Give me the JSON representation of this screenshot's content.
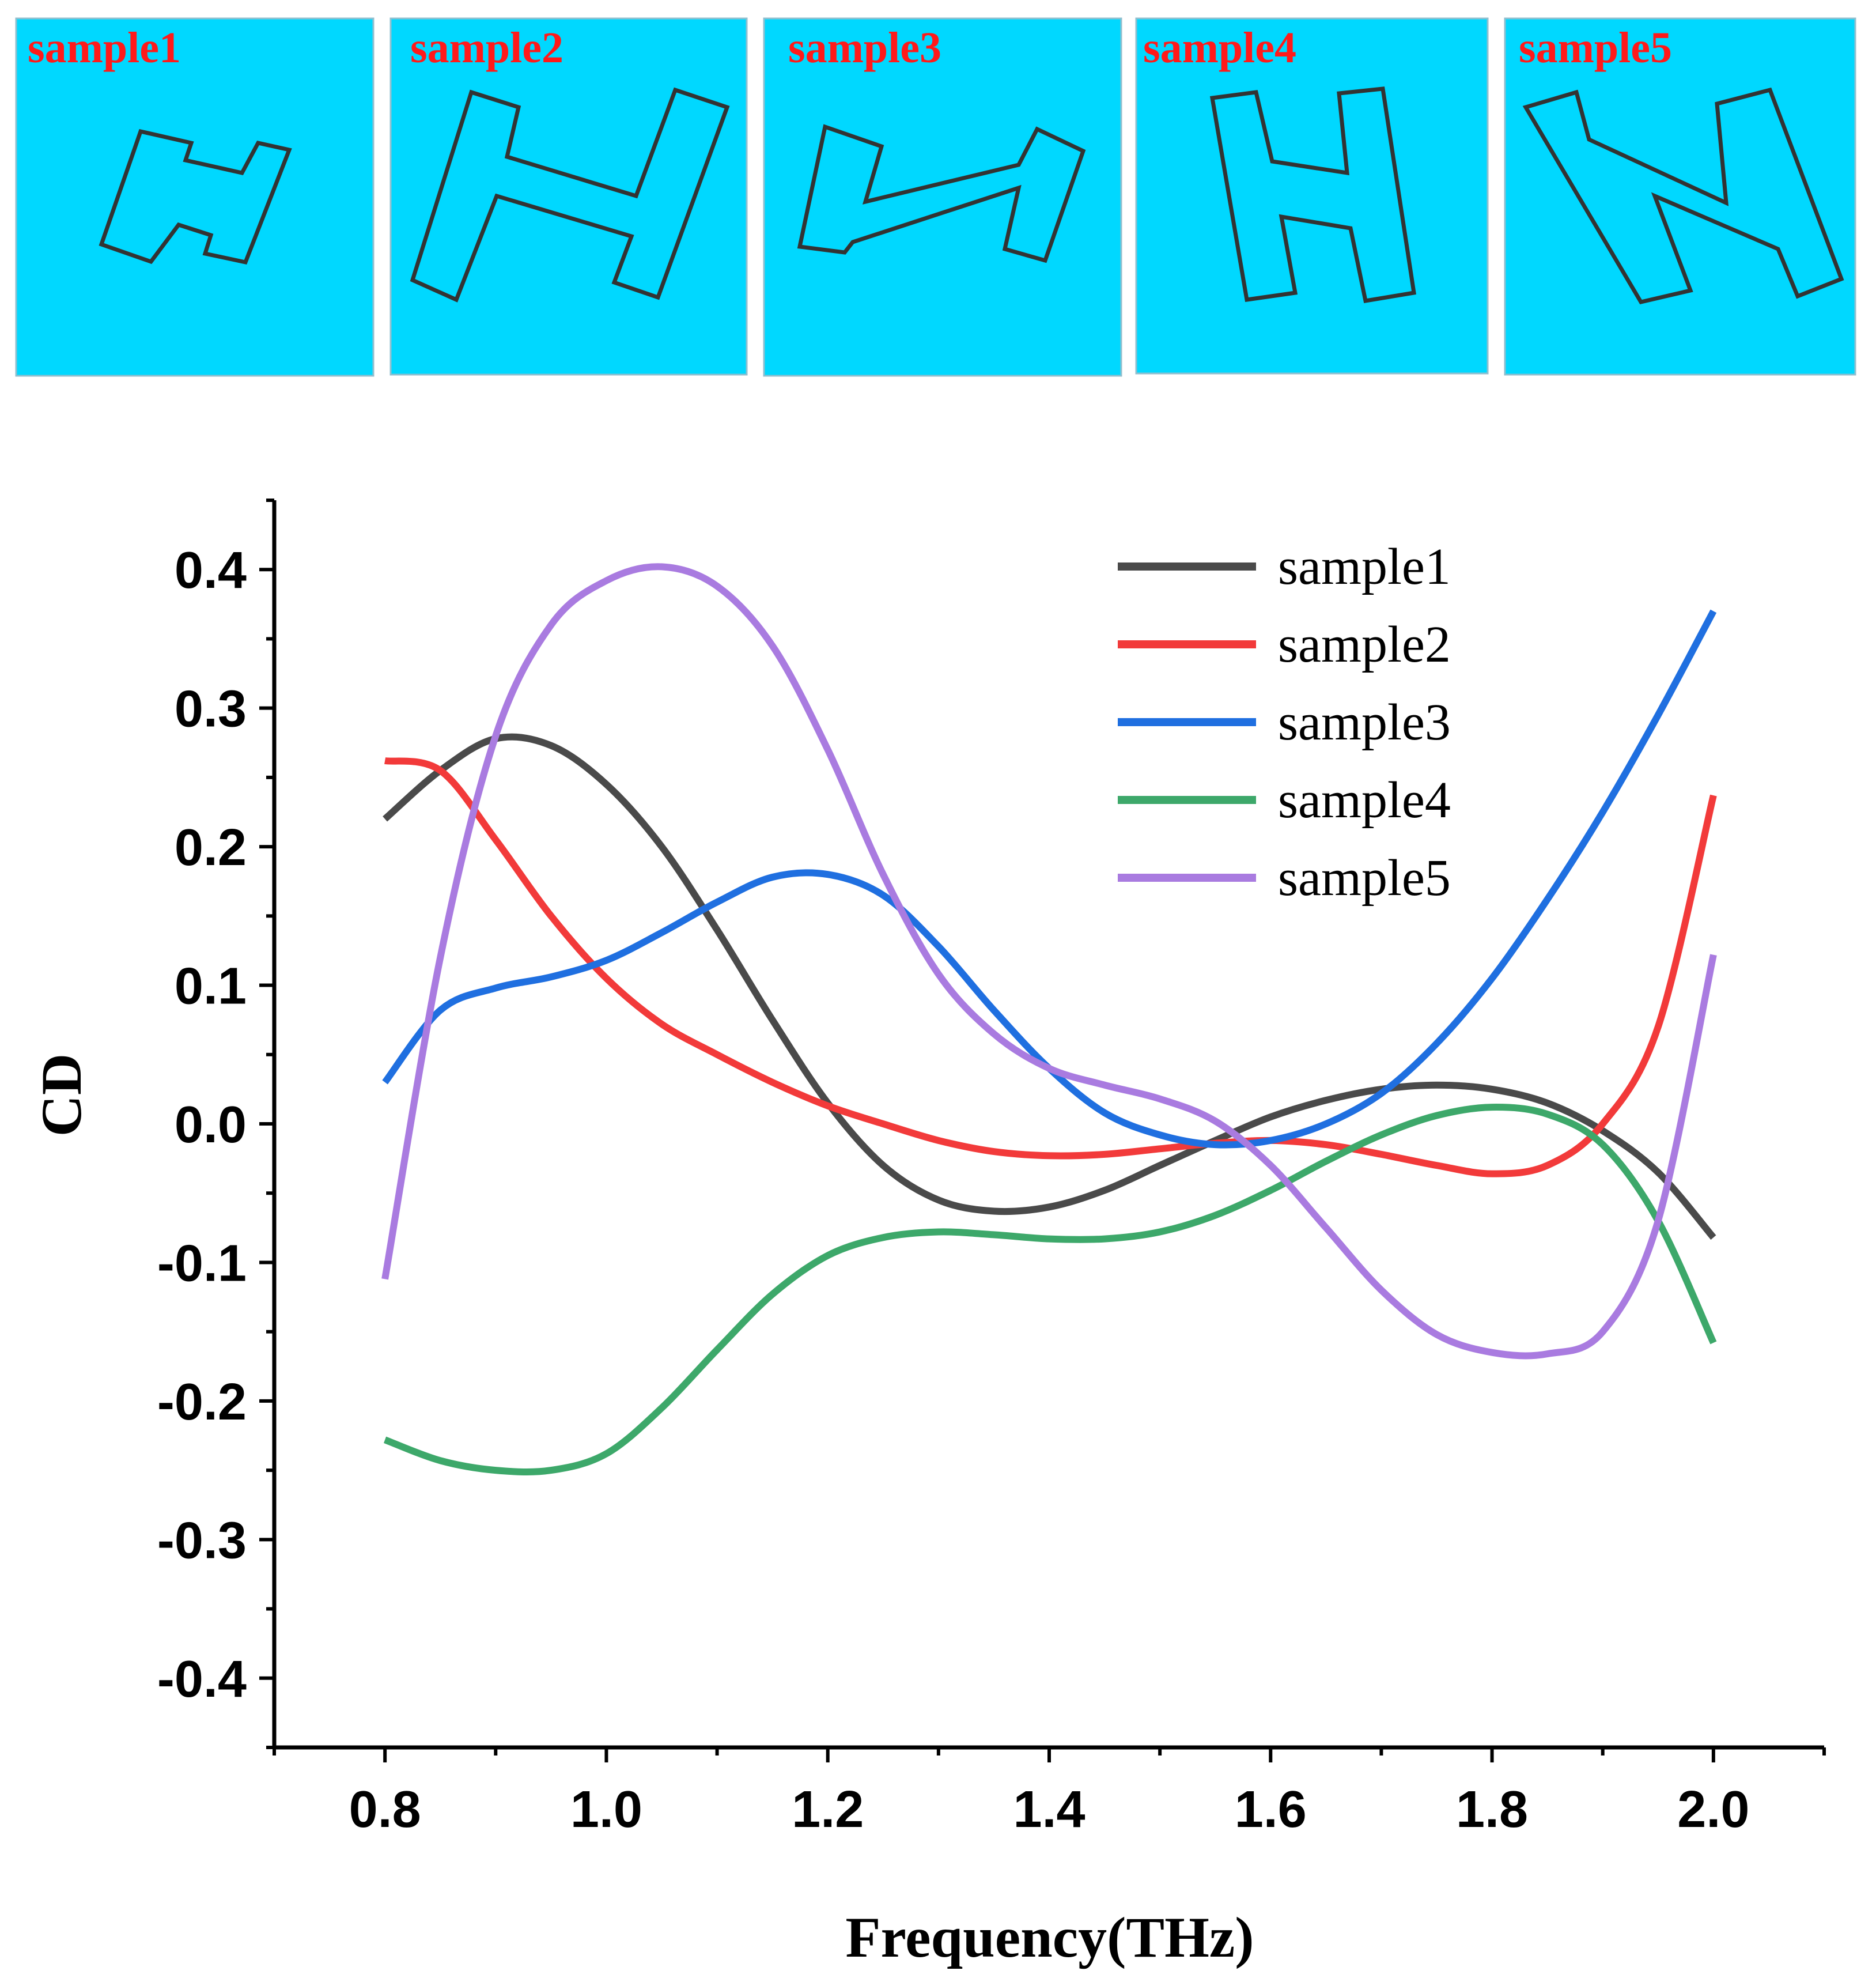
{
  "panels": [
    {
      "label": "sample1",
      "shape": "H-shape, small, tilted"
    },
    {
      "label": "sample2",
      "shape": "H-shape, large, rotated"
    },
    {
      "label": "sample3",
      "shape": "Z-like shape"
    },
    {
      "label": "sample4",
      "shape": "H-shape, upright slightly tilted"
    },
    {
      "label": "sample5",
      "shape": "N-like shape"
    }
  ],
  "colors": {
    "panel_bg": "#00D8FF",
    "panel_label": "#FF1A1A",
    "outline": "#333333",
    "sample1": "#4A4A4A",
    "sample2": "#F23A3A",
    "sample3": "#1F6FE0",
    "sample4": "#3DA86A",
    "sample5": "#A97BE0"
  },
  "chart_data": {
    "type": "line",
    "title": "",
    "xlabel": "Frequency(THz)",
    "ylabel": "CD",
    "xlim": [
      0.7,
      2.1
    ],
    "ylim": [
      -0.45,
      0.45
    ],
    "xticks": [
      "0.8",
      "1.0",
      "1.2",
      "1.4",
      "1.6",
      "1.8",
      "2.0"
    ],
    "yticks": [
      "0.4",
      "0.3",
      "0.2",
      "0.1",
      "0.0",
      "-0.1",
      "-0.2",
      "-0.3",
      "-0.4"
    ],
    "legend_position": "top-right",
    "series": [
      {
        "name": "sample1",
        "x": [
          0.8,
          0.85,
          0.9,
          0.95,
          1.0,
          1.05,
          1.1,
          1.15,
          1.2,
          1.25,
          1.3,
          1.35,
          1.4,
          1.45,
          1.5,
          1.55,
          1.6,
          1.65,
          1.7,
          1.75,
          1.8,
          1.85,
          1.9,
          1.95,
          2.0
        ],
        "y": [
          0.22,
          0.255,
          0.278,
          0.273,
          0.245,
          0.2,
          0.14,
          0.075,
          0.015,
          -0.03,
          -0.055,
          -0.063,
          -0.06,
          -0.048,
          -0.03,
          -0.012,
          0.005,
          0.017,
          0.025,
          0.028,
          0.025,
          0.015,
          -0.005,
          -0.035,
          -0.082
        ]
      },
      {
        "name": "sample2",
        "x": [
          0.8,
          0.85,
          0.9,
          0.95,
          1.0,
          1.05,
          1.1,
          1.15,
          1.2,
          1.25,
          1.3,
          1.35,
          1.4,
          1.45,
          1.5,
          1.55,
          1.6,
          1.65,
          1.7,
          1.75,
          1.8,
          1.85,
          1.9,
          1.95,
          2.0
        ],
        "y": [
          0.262,
          0.255,
          0.205,
          0.15,
          0.105,
          0.072,
          0.05,
          0.03,
          0.013,
          0.0,
          -0.012,
          -0.02,
          -0.023,
          -0.022,
          -0.018,
          -0.014,
          -0.012,
          -0.015,
          -0.022,
          -0.03,
          -0.036,
          -0.03,
          0.0,
          0.07,
          0.237
        ]
      },
      {
        "name": "sample3",
        "x": [
          0.8,
          0.85,
          0.9,
          0.95,
          1.0,
          1.05,
          1.1,
          1.15,
          1.2,
          1.25,
          1.3,
          1.35,
          1.4,
          1.45,
          1.5,
          1.55,
          1.6,
          1.65,
          1.7,
          1.75,
          1.8,
          1.85,
          1.9,
          1.95,
          2.0
        ],
        "y": [
          0.03,
          0.082,
          0.098,
          0.106,
          0.118,
          0.138,
          0.16,
          0.178,
          0.18,
          0.165,
          0.128,
          0.082,
          0.04,
          0.008,
          -0.008,
          -0.015,
          -0.012,
          0.0,
          0.022,
          0.058,
          0.105,
          0.162,
          0.225,
          0.295,
          0.37
        ]
      },
      {
        "name": "sample4",
        "x": [
          0.8,
          0.85,
          0.9,
          0.95,
          1.0,
          1.05,
          1.1,
          1.15,
          1.2,
          1.25,
          1.3,
          1.35,
          1.4,
          1.45,
          1.5,
          1.55,
          1.6,
          1.65,
          1.7,
          1.75,
          1.8,
          1.85,
          1.9,
          1.95,
          2.0
        ],
        "y": [
          -0.228,
          -0.243,
          -0.25,
          -0.25,
          -0.238,
          -0.205,
          -0.163,
          -0.123,
          -0.095,
          -0.082,
          -0.078,
          -0.08,
          -0.083,
          -0.083,
          -0.078,
          -0.066,
          -0.048,
          -0.027,
          -0.008,
          0.006,
          0.012,
          0.007,
          -0.015,
          -0.07,
          -0.158
        ]
      },
      {
        "name": "sample5",
        "x": [
          0.8,
          0.85,
          0.9,
          0.95,
          1.0,
          1.05,
          1.1,
          1.15,
          1.2,
          1.25,
          1.3,
          1.35,
          1.4,
          1.45,
          1.5,
          1.55,
          1.6,
          1.65,
          1.7,
          1.75,
          1.8,
          1.85,
          1.9,
          1.95,
          2.0
        ],
        "y": [
          -0.112,
          0.12,
          0.28,
          0.36,
          0.392,
          0.402,
          0.388,
          0.345,
          0.27,
          0.18,
          0.108,
          0.065,
          0.04,
          0.028,
          0.018,
          0.002,
          -0.03,
          -0.075,
          -0.12,
          -0.152,
          -0.165,
          -0.166,
          -0.15,
          -0.07,
          0.122
        ]
      }
    ]
  }
}
